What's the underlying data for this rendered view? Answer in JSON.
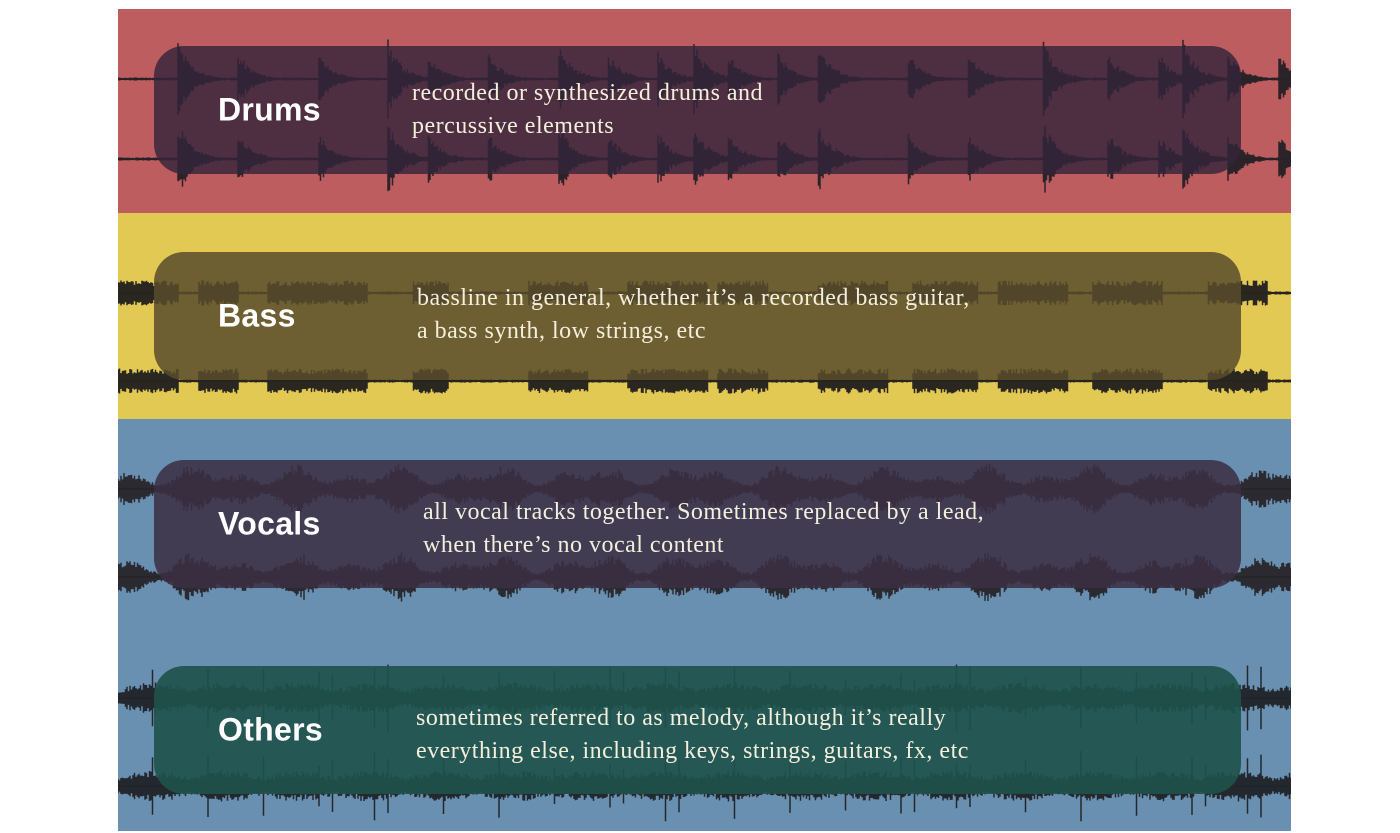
{
  "stems": [
    {
      "id": "drums",
      "name": "Drums",
      "description": [
        "recorded or synthesized drums and",
        "percussive elements"
      ],
      "track_color": "#bd5d5f",
      "overlay_color": "#3d2a3f"
    },
    {
      "id": "bass",
      "name": "Bass",
      "description": [
        "bassline in general, whether it’s a recorded bass guitar,",
        "a bass synth, low strings, etc"
      ],
      "track_color": "#e2c954",
      "overlay_color": "#6a5d31"
    },
    {
      "id": "vocals",
      "name": "Vocals",
      "description": [
        "all vocal tracks together. Sometimes replaced by a lead,",
        "when there’s no vocal content"
      ],
      "track_color": "#6a90b1",
      "overlay_color": "#3d3345"
    },
    {
      "id": "others",
      "name": "Others",
      "description": [
        "sometimes referred to as melody, although it’s really",
        "everything else, including keys, strings, guitars, fx, etc"
      ],
      "track_color": "#6a90b1",
      "overlay_color": "#22564f"
    }
  ]
}
